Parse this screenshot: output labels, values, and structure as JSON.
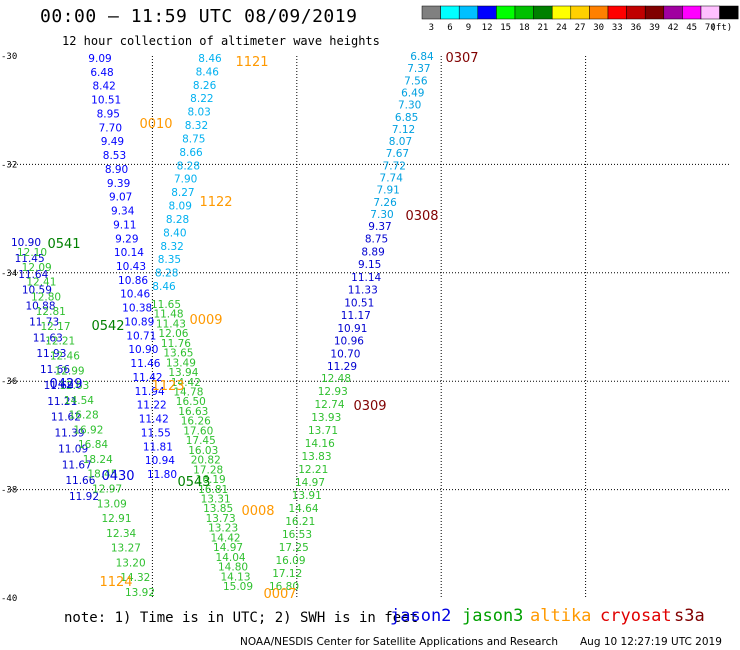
{
  "header": {
    "title": "00:00 – 11:59 UTC 08/09/2019",
    "subtitle": "12 hour collection of altimeter wave heights"
  },
  "legend": {
    "unit": "(ft)",
    "bins": [
      {
        "label": "3",
        "color": "#808080"
      },
      {
        "label": "6",
        "color": "#00ffff"
      },
      {
        "label": "9",
        "color": "#00c0ff"
      },
      {
        "label": "12",
        "color": "#0000ff"
      },
      {
        "label": "15",
        "color": "#00ff00"
      },
      {
        "label": "18",
        "color": "#00c000"
      },
      {
        "label": "21",
        "color": "#008000"
      },
      {
        "label": "24",
        "color": "#ffff00"
      },
      {
        "label": "27",
        "color": "#ffd000"
      },
      {
        "label": "30",
        "color": "#ff8000"
      },
      {
        "label": "33",
        "color": "#ff0000"
      },
      {
        "label": "36",
        "color": "#c00000"
      },
      {
        "label": "39",
        "color": "#800000"
      },
      {
        "label": "42",
        "color": "#a000a0"
      },
      {
        "label": "45",
        "color": "#ff00ff"
      },
      {
        "label": "70",
        "color": "#ffc0ff"
      },
      {
        "label": "",
        "color": "#000000"
      }
    ]
  },
  "map": {
    "x_ticks": [
      "90",
      "93",
      "96",
      "99",
      "102",
      "105"
    ],
    "y_ticks": [
      "-30",
      "-32",
      "-34",
      "-36",
      "-38",
      "-40"
    ],
    "passes": [
      {
        "label": "1121",
        "sat": "altika",
        "color": "#ff9900"
      },
      {
        "label": "0307",
        "sat": "s3a",
        "color": "#800000"
      },
      {
        "label": "0010",
        "sat": "altika",
        "color": "#ff9900"
      },
      {
        "label": "0308",
        "sat": "s3a",
        "color": "#800000"
      },
      {
        "label": "1122",
        "sat": "altika",
        "color": "#ff9900"
      },
      {
        "label": "0541",
        "sat": "jason3",
        "color": "#008000"
      },
      {
        "label": "0542",
        "sat": "jason3",
        "color": "#008000"
      },
      {
        "label": "0009",
        "sat": "altika",
        "color": "#ff9900"
      },
      {
        "label": "0429",
        "sat": "jason2",
        "color": "#0000e0"
      },
      {
        "label": "1123",
        "sat": "altika",
        "color": "#ff9900"
      },
      {
        "label": "0309",
        "sat": "s3a",
        "color": "#800000"
      },
      {
        "label": "0430",
        "sat": "jason2",
        "color": "#0000e0"
      },
      {
        "label": "0543",
        "sat": "jason3",
        "color": "#008000"
      },
      {
        "label": "0008",
        "sat": "altika",
        "color": "#ff9900"
      },
      {
        "label": "1124",
        "sat": "altika",
        "color": "#ff9900"
      },
      {
        "label": "0007",
        "sat": "altika",
        "color": "#ff9900"
      }
    ],
    "tracks": [
      {
        "name": "jason2-a",
        "color": "#0000ff",
        "values": [
          "9.09",
          "6.48",
          "8.42",
          "10.51",
          "8.95",
          "7.70",
          "9.49",
          "8.53",
          "8.90",
          "9.39",
          "9.07",
          "9.34",
          "9.11",
          "9.29",
          "10.14",
          "10.43",
          "10.86",
          "10.46",
          "10.38",
          "10.89",
          "10.71",
          "10.90",
          "11.46",
          "11.42",
          "11.94",
          "11.22",
          "11.42",
          "11.55",
          "11.81",
          "10.94",
          "11.80"
        ]
      },
      {
        "name": "altika-a",
        "color": "#00b0f0",
        "values": [
          "8.46",
          "8.46",
          "8.26",
          "8.22",
          "8.03",
          "8.32",
          "8.75",
          "8.66",
          "8.28",
          "7.90",
          "8.27",
          "8.09",
          "8.28",
          "8.40",
          "8.32",
          "8.35",
          "8.28",
          "8.46"
        ]
      },
      {
        "name": "s3a",
        "color": "#00a0e0",
        "values": [
          "6.84",
          "7.37",
          "7.56",
          "6.49",
          "7.30",
          "6.85",
          "7.12",
          "8.07",
          "7.67",
          "7.72",
          "7.74",
          "7.91",
          "7.26",
          "7.30"
        ]
      },
      {
        "name": "s3a-b",
        "color": "#0000d0",
        "values": [
          "9.37",
          "8.75",
          "8.89",
          "9.15",
          "11.14",
          "11.33",
          "10.51",
          "11.17",
          "10.91",
          "10.96",
          "10.70",
          "11.29"
        ]
      },
      {
        "name": "s3a-c",
        "color": "#30c030",
        "values": [
          "12.48",
          "12.93",
          "12.74",
          "13.93",
          "13.71",
          "14.16",
          "13.83",
          "12.21",
          "14.97",
          "13.91",
          "14.64",
          "16.21",
          "16.53",
          "17.25",
          "16.09",
          "17.12",
          "16.80"
        ]
      },
      {
        "name": "jason3-a",
        "color": "#0000d0",
        "values": [
          "10.90",
          "11.45",
          "11.64",
          "10.59",
          "10.88",
          "11.73",
          "11.63",
          "11.93",
          "11.66",
          "11.69",
          "11.21",
          "11.62",
          "11.39",
          "11.09",
          "11.67",
          "11.66",
          "11.92"
        ]
      },
      {
        "name": "jason3-b",
        "color": "#30c030",
        "values": [
          "12.10",
          "12.09",
          "12.41",
          "12.80",
          "12.81",
          "12.17",
          "12.21",
          "12.46",
          "12.99",
          "12.63",
          "14.54",
          "16.28",
          "16.92",
          "16.84",
          "18.24",
          "18.45",
          "12.97",
          "13.09",
          "12.91",
          "12.34",
          "13.27",
          "13.20",
          "14.32",
          "13.92"
        ]
      },
      {
        "name": "altika-b",
        "color": "#30c030",
        "values": [
          "11.65",
          "11.48",
          "11.43",
          "12.06",
          "11.76",
          "13.65",
          "13.49",
          "13.94",
          "14.42",
          "14.78",
          "16.50",
          "16.63",
          "16.26",
          "17.60",
          "17.45",
          "16.03",
          "20.82",
          "17.28",
          "16.19",
          "16.81",
          "13.31",
          "13.85",
          "13.73",
          "13.23",
          "14.42",
          "14.97",
          "14.04",
          "14.80",
          "14.13",
          "15.09"
        ]
      }
    ]
  },
  "footer": {
    "note": "note: 1) Time is in UTC; 2) SWH is in feet",
    "satellites": {
      "jason2": "jason2",
      "jason3": "jason3",
      "altika": "altika",
      "cryosat": "cryosat",
      "s3a": "s3a"
    },
    "credit": "NOAA/NESDIS Center for Satellite Applications and Research",
    "stamp": "Aug 10 12:27:19 UTC 2019"
  }
}
